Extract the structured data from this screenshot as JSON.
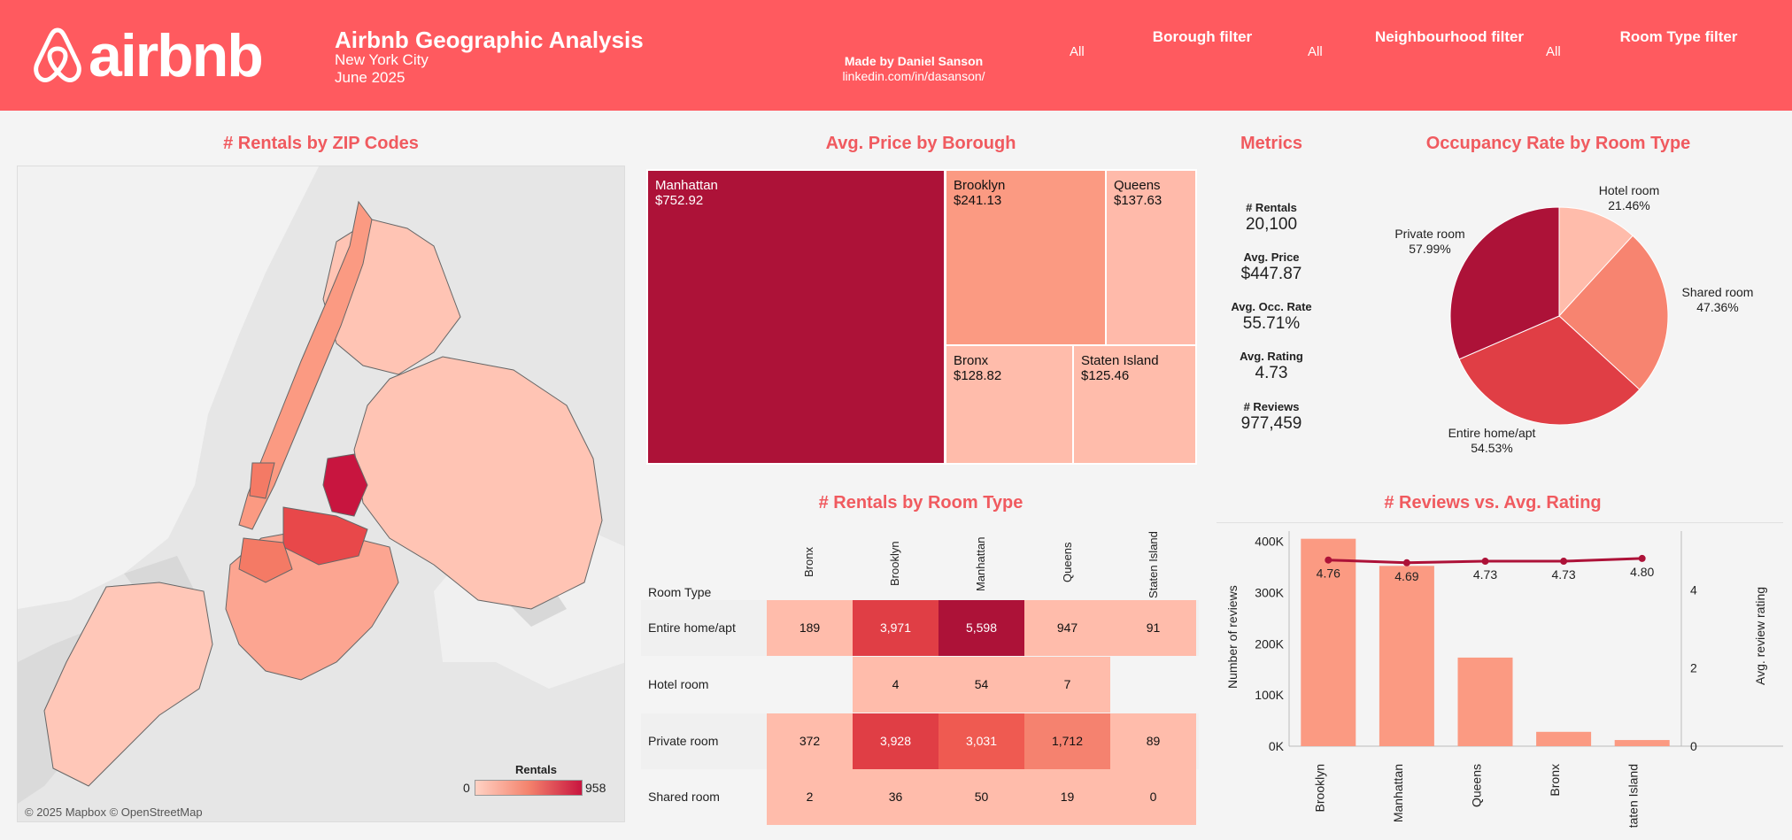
{
  "header": {
    "logo_text": "airbnb",
    "title": "Airbnb Geographic Analysis",
    "city": "New York City",
    "date": "June 2025",
    "made_by": "Made by Daniel Sanson",
    "link": "linkedin.com/in/dasanson/",
    "filters": [
      {
        "title": "Borough filter",
        "value": "All"
      },
      {
        "title": "Neighbourhood filter",
        "value": "All"
      },
      {
        "title": "Room Type filter",
        "value": "All"
      }
    ]
  },
  "map": {
    "title": "# Rentals by ZIP Codes",
    "legend_title": "Rentals",
    "legend_min": "0",
    "legend_max": "958",
    "credit": "© 2025 Mapbox © OpenStreetMap"
  },
  "treemap": {
    "title": "Avg. Price by Borough",
    "items": [
      {
        "name": "Manhattan",
        "value": "$752.92",
        "color": "#ad1238"
      },
      {
        "name": "Brooklyn",
        "value": "$241.13",
        "color": "#fb9a82"
      },
      {
        "name": "Queens",
        "value": "$137.63",
        "color": "#ffbaaa"
      },
      {
        "name": "Bronx",
        "value": "$128.82",
        "color": "#ffbcab"
      },
      {
        "name": "Staten Island",
        "value": "$125.46",
        "color": "#ffbcab"
      }
    ]
  },
  "metrics": {
    "title": "Metrics",
    "items": [
      {
        "label": "# Rentals",
        "value": "20,100"
      },
      {
        "label": "Avg. Price",
        "value": "$447.87"
      },
      {
        "label": "Avg. Occ. Rate",
        "value": "55.71%"
      },
      {
        "label": "Avg. Rating",
        "value": "4.73"
      },
      {
        "label": "# Reviews",
        "value": "977,459"
      }
    ]
  },
  "room_table": {
    "title": "# Rentals by Room Type",
    "row_header": "Room Type",
    "columns": [
      "Bronx",
      "Brooklyn",
      "Manhattan",
      "Queens",
      "Staten Island"
    ],
    "rows": [
      {
        "label": "Entire home/apt",
        "values": [
          "189",
          "3,971",
          "5,598",
          "947",
          "91"
        ]
      },
      {
        "label": "Hotel room",
        "values": [
          "",
          "4",
          "54",
          "7",
          ""
        ]
      },
      {
        "label": "Private room",
        "values": [
          "372",
          "3,928",
          "3,031",
          "1,712",
          "89"
        ]
      },
      {
        "label": "Shared room",
        "values": [
          "2",
          "36",
          "50",
          "19",
          "0"
        ]
      }
    ]
  },
  "chart_data": [
    {
      "type": "pie",
      "title": "Occupancy Rate by Room Type",
      "labels": [
        "Hotel room",
        "Shared room",
        "Entire home/apt",
        "Private room"
      ],
      "values": [
        21.46,
        47.36,
        54.53,
        57.99
      ],
      "value_labels": [
        "21.46%",
        "47.36%",
        "54.53%",
        "57.99%"
      ],
      "colors": [
        "#ffbcab",
        "#f78470",
        "#e03e45",
        "#ad1238"
      ]
    },
    {
      "type": "bar",
      "title": "# Reviews vs. Avg. Rating",
      "categories": [
        "Brooklyn",
        "Manhattan",
        "Queens",
        "Bronx",
        "Staten Island"
      ],
      "series": [
        {
          "name": "Number of reviews",
          "values": [
            405000,
            352000,
            173000,
            28000,
            12000
          ]
        },
        {
          "name": "Avg. review rating",
          "values": [
            4.76,
            4.69,
            4.73,
            4.73,
            4.8
          ]
        }
      ],
      "rating_labels": [
        "4.76",
        "4.69",
        "4.73",
        "4.73",
        "4.80"
      ],
      "ylabel": "Number of reviews",
      "y2label": "Avg. review rating",
      "yticks": [
        "0K",
        "100K",
        "200K",
        "300K",
        "400K"
      ],
      "y2ticks": [
        "0",
        "2",
        "4"
      ],
      "ylim": [
        0,
        420000
      ],
      "y2lim": [
        0,
        5.5
      ],
      "bar_color": "#fb9a82",
      "line_color": "#ad1238"
    }
  ]
}
